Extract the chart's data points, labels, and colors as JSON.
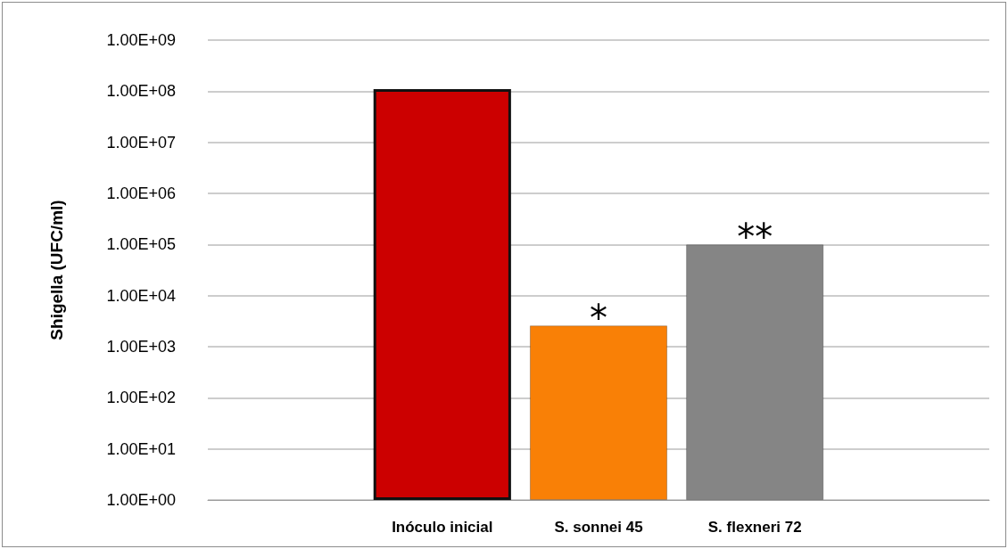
{
  "chart_data": {
    "type": "bar",
    "ylabel": "Shigella (UFC/ml)",
    "categories": [
      null,
      "Inóculo inicial",
      "S. sonnei 45",
      "S. flexneri 72",
      null
    ],
    "values": [
      null,
      110000000,
      2600,
      100000,
      null
    ],
    "colors": [
      "#cc0000",
      "#cc0000",
      "#f98006",
      "#858585",
      "#858585"
    ],
    "log": "y",
    "ylim": [
      1,
      1000000000
    ],
    "yticks": [
      {
        "value": 1,
        "label": "1.00E+00"
      },
      {
        "value": 10,
        "label": "1.00E+01"
      },
      {
        "value": 100,
        "label": "1.00E+02"
      },
      {
        "value": 1000,
        "label": "1.00E+03"
      },
      {
        "value": 10000,
        "label": "1.00E+04"
      },
      {
        "value": 100000,
        "label": "1.00E+05"
      },
      {
        "value": 1000000,
        "label": "1.00E+06"
      },
      {
        "value": 10000000,
        "label": "1.00E+07"
      },
      {
        "value": 100000000,
        "label": "1.00E+08"
      },
      {
        "value": 1000000000,
        "label": "1.00E+09"
      }
    ],
    "grid": "y",
    "annotations": [
      {
        "text": "*",
        "x": "S. sonnei 45",
        "y": 2600
      },
      {
        "text": "**",
        "x": "S. flexneri 72",
        "y": 100000
      }
    ]
  }
}
